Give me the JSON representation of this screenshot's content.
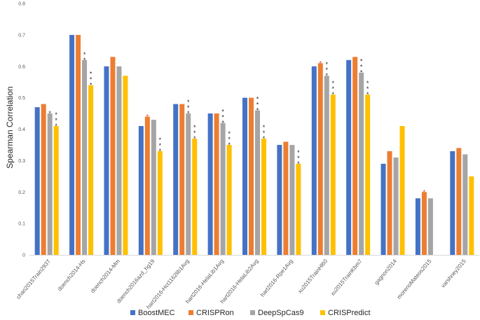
{
  "chart_data": {
    "type": "bar",
    "title": "",
    "xlabel": "",
    "ylabel": "Spearman Correlation",
    "ylim": [
      0,
      0.8
    ],
    "yticks": [
      "0",
      "0.1",
      "0.2",
      "0.3",
      "0.4",
      "0.5",
      "0.6",
      "0.7",
      "0.8"
    ],
    "grid": false,
    "legend_position": "bottom",
    "categories": [
      "chari2015Train293T",
      "doench2014-Hs",
      "doench2014-Mm",
      "doench2016azd_hg19",
      "hart2016-Hct1162lib1Avg",
      "hart2016-HelaLib1Avg",
      "hart2016-HelaLib2Avg",
      "hart2016-Rpe1Avg",
      "xu2015TrainHl60",
      "xu2015TrainKbm7",
      "gagnon2014",
      "morenoMateos2015",
      "varshney2015"
    ],
    "series": [
      {
        "name": "BoostMEC",
        "color": "#4472c4",
        "values": [
          0.47,
          0.7,
          0.6,
          0.41,
          0.48,
          0.45,
          0.5,
          0.35,
          0.6,
          0.62,
          0.29,
          0.18,
          0.33
        ]
      },
      {
        "name": "CRISPRon",
        "color": "#ed7d31",
        "values": [
          0.48,
          0.7,
          0.63,
          0.44,
          0.48,
          0.45,
          0.5,
          0.36,
          0.61,
          0.63,
          0.33,
          0.2,
          0.34
        ]
      },
      {
        "name": "DeepSpCas9",
        "color": "#a5a5a5",
        "values": [
          0.45,
          0.62,
          0.6,
          0.43,
          0.45,
          0.42,
          0.46,
          0.35,
          0.57,
          0.58,
          0.31,
          0.18,
          0.32
        ]
      },
      {
        "name": "CRISPredict",
        "color": "#ffc000",
        "values": [
          0.41,
          0.54,
          0.57,
          0.33,
          0.37,
          0.35,
          0.37,
          0.29,
          0.51,
          0.51,
          0.41,
          null,
          0.25
        ]
      }
    ],
    "annotations": [
      {
        "category": 0,
        "series": 2,
        "text": "*",
        "color": "#262626"
      },
      {
        "category": 0,
        "series": 3,
        "text": "***",
        "color": "#262626"
      },
      {
        "category": 1,
        "series": 2,
        "text": "**",
        "color": "#262626"
      },
      {
        "category": 1,
        "series": 3,
        "text": "***",
        "color": "#262626"
      },
      {
        "category": 3,
        "series": 1,
        "text": "*",
        "color": "#e03c31"
      },
      {
        "category": 3,
        "series": 3,
        "text": "***",
        "color": "#262626"
      },
      {
        "category": 4,
        "series": 2,
        "text": "***",
        "color": "#262626"
      },
      {
        "category": 4,
        "series": 3,
        "text": "***",
        "color": "#262626"
      },
      {
        "category": 5,
        "series": 2,
        "text": "***",
        "color": "#262626"
      },
      {
        "category": 5,
        "series": 3,
        "text": "***",
        "color": "#262626"
      },
      {
        "category": 6,
        "series": 2,
        "text": "***",
        "color": "#262626"
      },
      {
        "category": 6,
        "series": 3,
        "text": "***",
        "color": "#262626"
      },
      {
        "category": 7,
        "series": 3,
        "text": "***",
        "color": "#262626"
      },
      {
        "category": 8,
        "series": 1,
        "text": "*",
        "color": "#e03c31"
      },
      {
        "category": 8,
        "series": 2,
        "text": "***",
        "color": "#262626"
      },
      {
        "category": 8,
        "series": 3,
        "text": "***",
        "color": "#262626"
      },
      {
        "category": 9,
        "series": 2,
        "text": "***",
        "color": "#262626"
      },
      {
        "category": 9,
        "series": 3,
        "text": "***",
        "color": "#262626"
      },
      {
        "category": 11,
        "series": 1,
        "text": "*",
        "color": "#e03c31"
      }
    ]
  }
}
